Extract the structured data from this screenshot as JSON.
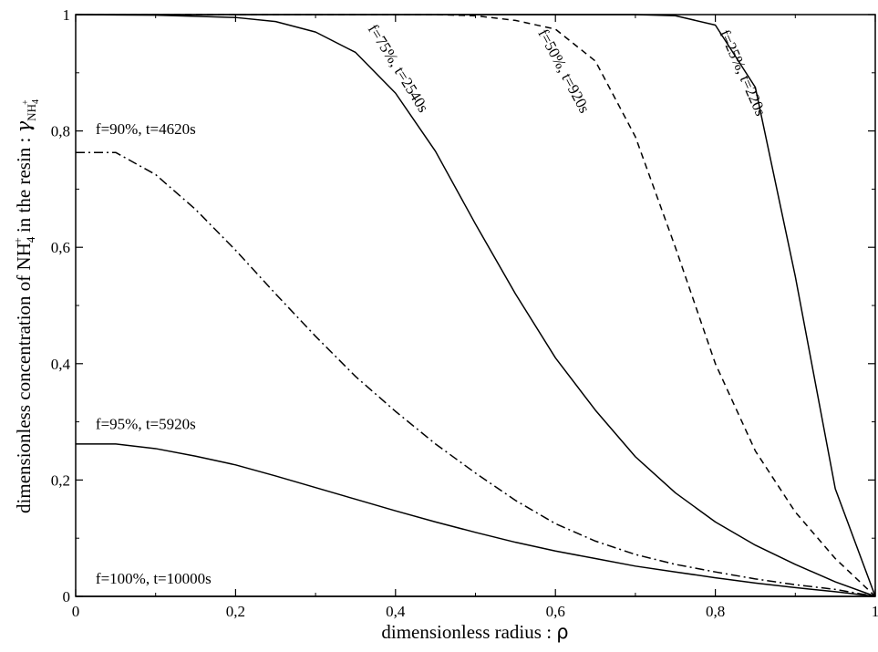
{
  "chart_data": {
    "type": "line",
    "title": "",
    "xlabel": {
      "text": "dimensionless radius : ",
      "symbol": "ρ"
    },
    "ylabel": {
      "prefix": "dimensionless concentration of NH",
      "sub": "4",
      "sup": "+",
      "middle": " in the resin : ",
      "symbol": "γ",
      "symbol_sub": "NH",
      "symbol_sub_sub": "4",
      "symbol_sub_sup": "+"
    },
    "xlim": [
      0,
      1
    ],
    "ylim": [
      0,
      1
    ],
    "xticks": [
      0,
      0.2,
      0.4,
      0.6,
      0.8,
      1
    ],
    "xtick_labels": [
      "0",
      "0,2",
      "0,4",
      "0,6",
      "0,8",
      "1"
    ],
    "yticks": [
      0,
      0.2,
      0.4,
      0.6,
      0.8,
      1
    ],
    "ytick_labels": [
      "0",
      "0,2",
      "0,4",
      "0,6",
      "0,8",
      "1"
    ],
    "grid": false,
    "legend": "none",
    "series": [
      {
        "label": "f=25%, t=220s",
        "style": "solid",
        "x": [
          0,
          0.7,
          0.75,
          0.8,
          0.85,
          0.9,
          0.95,
          1
        ],
        "y": [
          1,
          1,
          0.998,
          0.982,
          0.875,
          0.55,
          0.185,
          0
        ]
      },
      {
        "label": "f=50%, t=920s",
        "style": "dashed",
        "x": [
          0,
          0.45,
          0.5,
          0.55,
          0.6,
          0.65,
          0.7,
          0.75,
          0.8,
          0.85,
          0.9,
          0.95,
          1
        ],
        "y": [
          1,
          1,
          0.998,
          0.99,
          0.975,
          0.92,
          0.79,
          0.6,
          0.4,
          0.25,
          0.145,
          0.065,
          0
        ]
      },
      {
        "label": "f=75%, t=2540s",
        "style": "solid",
        "x": [
          0,
          0.1,
          0.15,
          0.2,
          0.25,
          0.3,
          0.35,
          0.4,
          0.45,
          0.5,
          0.55,
          0.6,
          0.65,
          0.7,
          0.75,
          0.8,
          0.85,
          0.9,
          0.95,
          1
        ],
        "y": [
          1,
          0.999,
          0.997,
          0.995,
          0.988,
          0.97,
          0.935,
          0.865,
          0.765,
          0.64,
          0.52,
          0.41,
          0.32,
          0.24,
          0.178,
          0.128,
          0.088,
          0.055,
          0.025,
          0
        ]
      },
      {
        "label": "f=90%, t=4620s",
        "style": "dashdot",
        "x": [
          0,
          0.05,
          0.1,
          0.15,
          0.2,
          0.25,
          0.3,
          0.35,
          0.4,
          0.45,
          0.5,
          0.55,
          0.6,
          0.65,
          0.7,
          0.75,
          0.8,
          0.85,
          0.9,
          0.95,
          1
        ],
        "y": [
          0.763,
          0.763,
          0.725,
          0.665,
          0.595,
          0.52,
          0.447,
          0.378,
          0.318,
          0.262,
          0.212,
          0.165,
          0.125,
          0.095,
          0.072,
          0.055,
          0.042,
          0.03,
          0.02,
          0.012,
          0
        ]
      },
      {
        "label": "f=95%, t=5920s",
        "style": "solid",
        "x": [
          0,
          0.05,
          0.1,
          0.15,
          0.2,
          0.25,
          0.3,
          0.35,
          0.4,
          0.45,
          0.5,
          0.55,
          0.6,
          0.65,
          0.7,
          0.75,
          0.8,
          0.85,
          0.9,
          0.95,
          1
        ],
        "y": [
          0.262,
          0.262,
          0.254,
          0.241,
          0.226,
          0.207,
          0.187,
          0.167,
          0.147,
          0.128,
          0.11,
          0.093,
          0.078,
          0.065,
          0.052,
          0.042,
          0.032,
          0.023,
          0.015,
          0.008,
          0
        ]
      },
      {
        "label": "f=100%, t=10000s",
        "style": "solid",
        "x": [
          0,
          1
        ],
        "y": [
          0,
          0
        ]
      }
    ],
    "annotations": [
      {
        "text": "f=75%, t=2540s",
        "x": 0.365,
        "y": 0.976,
        "rotate": 58,
        "anchor": "start"
      },
      {
        "text": "f=50%, t=920s",
        "x": 0.578,
        "y": 0.969,
        "rotate": 62,
        "anchor": "start"
      },
      {
        "text": "f=25%, t=220s",
        "x": 0.805,
        "y": 0.969,
        "rotate": 66,
        "anchor": "start"
      },
      {
        "text": "f=90%, t=4620s",
        "x": 0.025,
        "y": 0.795,
        "rotate": 0,
        "anchor": "start"
      },
      {
        "text": "f=95%, t=5920s",
        "x": 0.025,
        "y": 0.288,
        "rotate": 0,
        "anchor": "start"
      },
      {
        "text": "f=100%, t=10000s",
        "x": 0.025,
        "y": 0.022,
        "rotate": 0,
        "anchor": "start"
      }
    ]
  }
}
